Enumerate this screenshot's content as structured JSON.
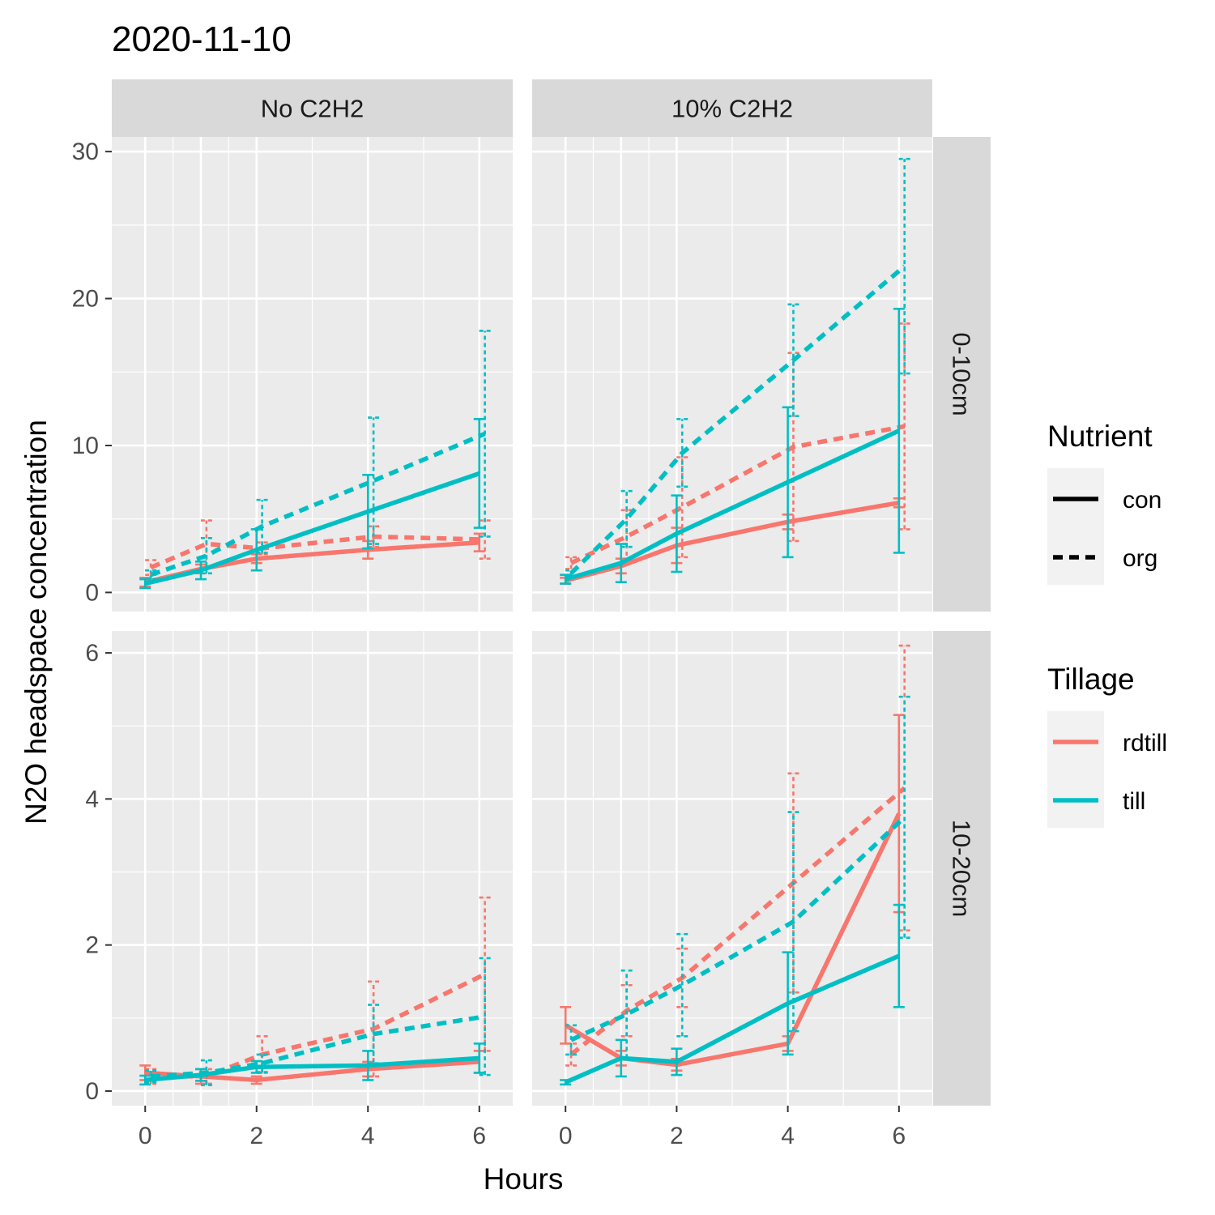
{
  "chart_data": {
    "type": "line",
    "title": "2020-11-10",
    "xlabel": "Hours",
    "ylabel": "N2O headspace concentration",
    "x_ticks": [
      0,
      2,
      4,
      6
    ],
    "x_breaks": [
      0,
      1,
      2,
      4,
      6
    ],
    "xlim": [
      -0.6,
      6.6
    ],
    "grid": true,
    "facet_cols": [
      "No C2H2",
      "10% C2H2"
    ],
    "facet_rows": [
      {
        "label": "0-10cm",
        "ylim": [
          -1.3,
          31
        ],
        "y_ticks": [
          0,
          10,
          20,
          30
        ]
      },
      {
        "label": "10-20cm",
        "ylim": [
          -0.2,
          6.3
        ],
        "y_ticks": [
          0,
          2,
          4,
          6
        ]
      }
    ],
    "legends": {
      "nutrient": {
        "title": "Nutrient",
        "items": [
          {
            "label": "con",
            "dash": "solid"
          },
          {
            "label": "org",
            "dash": "dashed"
          }
        ]
      },
      "tillage": {
        "title": "Tillage",
        "items": [
          {
            "label": "rdtill",
            "color": "#F8766D"
          },
          {
            "label": "till",
            "color": "#00BFC4"
          }
        ]
      }
    },
    "colors": {
      "rdtill": "#F8766D",
      "till": "#00BFC4"
    },
    "panels": [
      {
        "row": 0,
        "col": 0,
        "series": [
          {
            "tillage": "rdtill",
            "nutrient": "con",
            "x": [
              0,
              1,
              2,
              4,
              6
            ],
            "y": [
              0.7,
              1.6,
              2.3,
              2.9,
              3.4
            ],
            "err": [
              0.3,
              0.3,
              0.3,
              0.6,
              0.6
            ]
          },
          {
            "tillage": "rdtill",
            "nutrient": "org",
            "x": [
              0.1,
              1.1,
              2.1,
              4.1,
              6.1
            ],
            "y": [
              1.7,
              3.3,
              3.0,
              3.8,
              3.6
            ],
            "err": [
              0.5,
              1.6,
              0.4,
              0.7,
              1.3
            ]
          },
          {
            "tillage": "till",
            "nutrient": "con",
            "x": [
              0,
              1,
              2,
              4,
              6
            ],
            "y": [
              0.6,
              1.5,
              2.9,
              5.5,
              8.1
            ],
            "err": [
              0.3,
              0.6,
              1.4,
              2.5,
              3.7
            ]
          },
          {
            "tillage": "till",
            "nutrient": "org",
            "x": [
              0.1,
              1.1,
              2.1,
              4.1,
              6.1
            ],
            "y": [
              1.2,
              2.5,
              4.5,
              7.6,
              10.8
            ],
            "err": [
              0.3,
              1.2,
              1.8,
              4.3,
              7.0
            ]
          }
        ]
      },
      {
        "row": 0,
        "col": 1,
        "series": [
          {
            "tillage": "rdtill",
            "nutrient": "con",
            "x": [
              0,
              1,
              2,
              4,
              6
            ],
            "y": [
              0.8,
              1.8,
              3.2,
              4.8,
              6.1
            ],
            "err": [
              0.2,
              0.5,
              1.2,
              0.5,
              0.3
            ]
          },
          {
            "tillage": "rdtill",
            "nutrient": "org",
            "x": [
              0.1,
              1.1,
              2.1,
              4.1,
              6.1
            ],
            "y": [
              2.0,
              3.8,
              5.8,
              9.9,
              11.3
            ],
            "err": [
              0.4,
              1.8,
              3.4,
              6.4,
              7.0
            ]
          },
          {
            "tillage": "till",
            "nutrient": "con",
            "x": [
              0,
              1,
              2,
              4,
              6
            ],
            "y": [
              0.9,
              2.0,
              4.0,
              7.5,
              11.0
            ],
            "err": [
              0.3,
              1.3,
              2.6,
              5.1,
              8.3
            ]
          },
          {
            "tillage": "till",
            "nutrient": "org",
            "x": [
              0.1,
              1.1,
              2.1,
              4.1,
              6.1
            ],
            "y": [
              1.3,
              5.0,
              9.5,
              15.8,
              22.2
            ],
            "err": [
              0.2,
              1.9,
              2.3,
              3.8,
              7.3
            ]
          }
        ]
      },
      {
        "row": 1,
        "col": 0,
        "series": [
          {
            "tillage": "rdtill",
            "nutrient": "con",
            "x": [
              0,
              1,
              2,
              4,
              6
            ],
            "y": [
              0.25,
              0.2,
              0.15,
              0.3,
              0.4
            ],
            "err": [
              0.1,
              0.1,
              0.05,
              0.1,
              0.15
            ]
          },
          {
            "tillage": "rdtill",
            "nutrient": "org",
            "x": [
              0.1,
              1.1,
              2.1,
              4.1,
              6.1
            ],
            "y": [
              0.2,
              0.2,
              0.5,
              0.85,
              1.6
            ],
            "err": [
              0.1,
              0.1,
              0.25,
              0.65,
              1.05
            ]
          },
          {
            "tillage": "till",
            "nutrient": "con",
            "x": [
              0,
              1,
              2,
              4,
              6
            ],
            "y": [
              0.15,
              0.22,
              0.33,
              0.35,
              0.45
            ],
            "err": [
              0.06,
              0.08,
              0.08,
              0.2,
              0.2
            ]
          },
          {
            "tillage": "till",
            "nutrient": "org",
            "x": [
              0.1,
              1.1,
              2.1,
              4.1,
              6.1
            ],
            "y": [
              0.2,
              0.25,
              0.38,
              0.78,
              1.02
            ],
            "err": [
              0.08,
              0.17,
              0.12,
              0.4,
              0.8
            ]
          }
        ]
      },
      {
        "row": 1,
        "col": 1,
        "series": [
          {
            "tillage": "rdtill",
            "nutrient": "con",
            "x": [
              0,
              1,
              2,
              4,
              6
            ],
            "y": [
              0.9,
              0.45,
              0.36,
              0.65,
              3.8
            ],
            "err": [
              0.25,
              0.1,
              0.08,
              0.1,
              1.35
            ]
          },
          {
            "tillage": "rdtill",
            "nutrient": "org",
            "x": [
              0.1,
              1.1,
              2.1,
              4.1,
              6.1
            ],
            "y": [
              0.5,
              1.1,
              1.55,
              2.85,
              4.15
            ],
            "err": [
              0.15,
              0.35,
              0.4,
              1.5,
              1.95
            ]
          },
          {
            "tillage": "till",
            "nutrient": "con",
            "x": [
              0,
              1,
              2,
              4,
              6
            ],
            "y": [
              0.12,
              0.45,
              0.4,
              1.2,
              1.85
            ],
            "err": [
              0.03,
              0.25,
              0.18,
              0.7,
              0.7
            ]
          },
          {
            "tillage": "till",
            "nutrient": "org",
            "x": [
              0.1,
              1.1,
              2.1,
              4.1,
              6.1
            ],
            "y": [
              0.7,
              1.05,
              1.45,
              2.32,
              3.75
            ],
            "err": [
              0.2,
              0.6,
              0.7,
              1.5,
              1.65
            ]
          }
        ]
      }
    ]
  }
}
